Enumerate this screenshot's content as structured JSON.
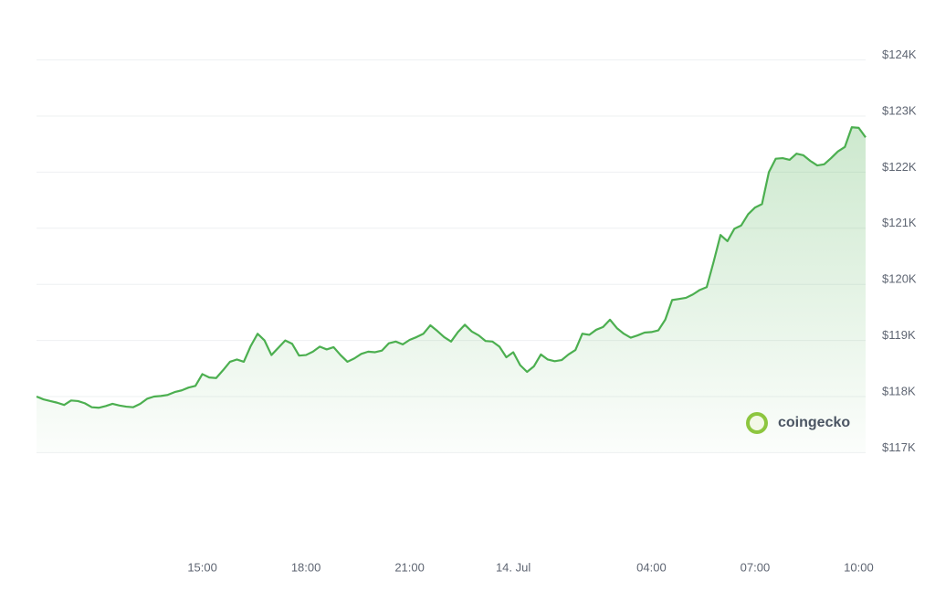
{
  "chart_data": {
    "type": "line",
    "categories": [
      null,
      null,
      null,
      null,
      null,
      null,
      null,
      null,
      null,
      null,
      null,
      null,
      null,
      null,
      null,
      null,
      null,
      null,
      null,
      null,
      null,
      null,
      null,
      null,
      "15:00",
      null,
      null,
      null,
      null,
      null,
      null,
      null,
      null,
      null,
      null,
      null,
      null,
      null,
      null,
      "18:00",
      null,
      null,
      null,
      null,
      null,
      null,
      null,
      null,
      null,
      null,
      null,
      null,
      null,
      null,
      "21:00",
      null,
      null,
      null,
      null,
      null,
      null,
      null,
      null,
      null,
      null,
      null,
      null,
      null,
      null,
      "14. Jul",
      null,
      null,
      null,
      null,
      null,
      null,
      null,
      null,
      null,
      null,
      null,
      null,
      null,
      null,
      null,
      null,
      null,
      null,
      null,
      "04:00",
      null,
      null,
      null,
      null,
      null,
      null,
      null,
      null,
      null,
      null,
      null,
      null,
      null,
      null,
      "07:00",
      null,
      null,
      null,
      null,
      null,
      null,
      null,
      null,
      null,
      null,
      null,
      null,
      null,
      null,
      "10:00",
      null
    ],
    "values": [
      118000,
      117950,
      117920,
      117890,
      117850,
      117930,
      117920,
      117880,
      117810,
      117800,
      117830,
      117870,
      117840,
      117820,
      117810,
      117870,
      117960,
      118000,
      118010,
      118030,
      118080,
      118110,
      118160,
      118190,
      118400,
      118340,
      118330,
      118470,
      118620,
      118660,
      118620,
      118900,
      119120,
      119000,
      118740,
      118870,
      119000,
      118940,
      118730,
      118740,
      118800,
      118890,
      118840,
      118880,
      118740,
      118620,
      118680,
      118760,
      118800,
      118790,
      118820,
      118950,
      118980,
      118930,
      119010,
      119060,
      119120,
      119270,
      119170,
      119060,
      118980,
      119150,
      119280,
      119160,
      119090,
      118990,
      118980,
      118890,
      118700,
      118790,
      118560,
      118440,
      118540,
      118750,
      118660,
      118630,
      118650,
      118750,
      118830,
      119120,
      119100,
      119190,
      119240,
      119370,
      119220,
      119120,
      119050,
      119090,
      119140,
      119150,
      119180,
      119370,
      119720,
      119740,
      119760,
      119820,
      119900,
      119950,
      120400,
      120880,
      120770,
      120990,
      121050,
      121250,
      121370,
      121430,
      122000,
      122240,
      122250,
      122220,
      122330,
      122300,
      122200,
      122120,
      122140,
      122250,
      122370,
      122450,
      122800,
      122790,
      122620
    ],
    "color": "#4caf50",
    "ylim": [
      117000,
      124000
    ],
    "yticks": [
      {
        "value": 117000,
        "label": "$117K"
      },
      {
        "value": 118000,
        "label": "$118K"
      },
      {
        "value": 119000,
        "label": "$119K"
      },
      {
        "value": 120000,
        "label": "$120K"
      },
      {
        "value": 121000,
        "label": "$121K"
      },
      {
        "value": 122000,
        "label": "$122K"
      },
      {
        "value": 123000,
        "label": "$123K"
      },
      {
        "value": 124000,
        "label": "$124K"
      }
    ],
    "grid": true,
    "watermark": "coingecko"
  }
}
